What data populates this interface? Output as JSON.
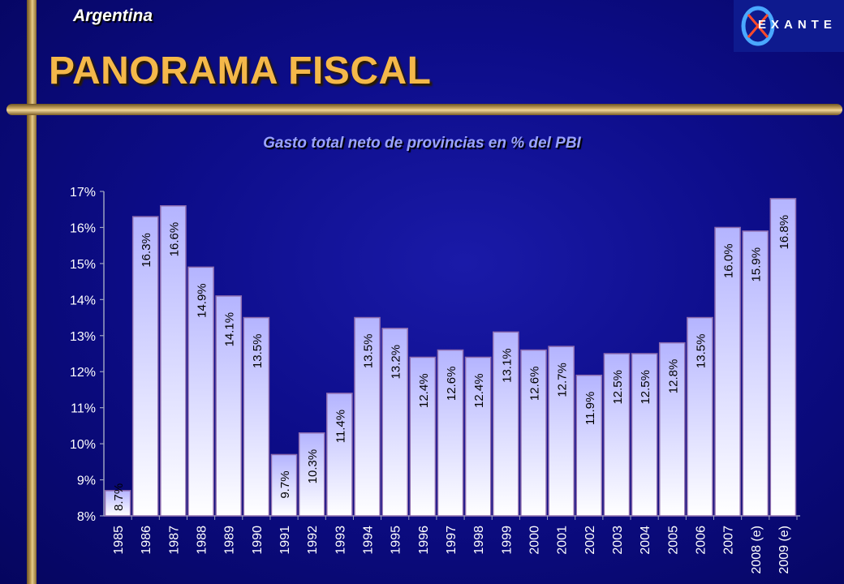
{
  "header": {
    "country": "Argentina",
    "title": "PANORAMA FISCAL",
    "logo_text": "EXANTE"
  },
  "colors": {
    "background": "#0d0d8a",
    "title": "#f4b84a",
    "gold": "#c9a45b",
    "bar_top": "#b8b8ff",
    "bar_bottom": "#ffffff",
    "bar_border": "#9a78b8"
  },
  "chart_data": {
    "type": "bar",
    "title": "Gasto total neto de provincias en %  del PBI",
    "xlabel": "",
    "ylabel": "",
    "ylim": [
      8,
      17
    ],
    "y_ticks": [
      "8%",
      "9%",
      "10%",
      "11%",
      "12%",
      "13%",
      "14%",
      "15%",
      "16%",
      "17%"
    ],
    "categories": [
      "1985",
      "1986",
      "1987",
      "1988",
      "1989",
      "1990",
      "1991",
      "1992",
      "1993",
      "1994",
      "1995",
      "1996",
      "1997",
      "1998",
      "1999",
      "2000",
      "2001",
      "2002",
      "2003",
      "2004",
      "2005",
      "2006",
      "2007",
      "2008 (e)",
      "2009 (e)"
    ],
    "values": [
      8.7,
      16.3,
      16.6,
      14.9,
      14.1,
      13.5,
      9.7,
      10.3,
      11.4,
      13.5,
      13.2,
      12.4,
      12.6,
      12.4,
      13.1,
      12.6,
      12.7,
      11.9,
      12.5,
      12.5,
      12.8,
      13.5,
      16.0,
      15.9,
      16.8
    ],
    "data_labels": [
      "8.7%",
      "16.3%",
      "16.6%",
      "14.9%",
      "14.1%",
      "13.5%",
      "9.7%",
      "10.3%",
      "11.4%",
      "13.5%",
      "13.2%",
      "12.4%",
      "12.6%",
      "12.4%",
      "13.1%",
      "12.6%",
      "12.7%",
      "11.9%",
      "12.5%",
      "12.5%",
      "12.8%",
      "13.5%",
      "16.0%",
      "15.9%",
      "16.8%"
    ],
    "grid": false,
    "legend": "none"
  }
}
